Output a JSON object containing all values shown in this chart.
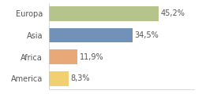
{
  "categories": [
    "Europa",
    "Asia",
    "Africa",
    "America"
  ],
  "values": [
    45.2,
    34.5,
    11.9,
    8.3
  ],
  "labels": [
    "45,2%",
    "34,5%",
    "11,9%",
    "8,3%"
  ],
  "bar_colors": [
    "#b5c48a",
    "#7191b8",
    "#e8a878",
    "#f0d070"
  ],
  "background_color": "#ffffff",
  "xlim": [
    0,
    60
  ],
  "label_fontsize": 7,
  "category_fontsize": 7
}
